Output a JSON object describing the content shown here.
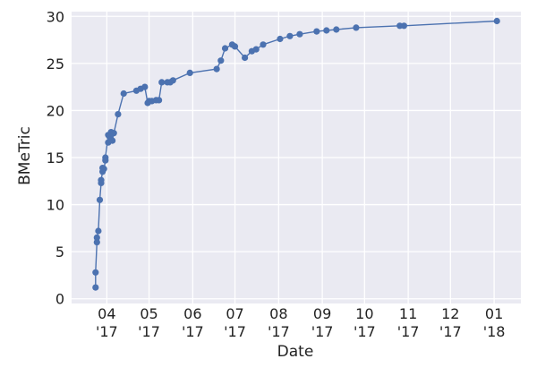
{
  "chart_data": {
    "type": "line",
    "xlabel": "Date",
    "ylabel": "BMeTric",
    "xlim": [
      "2017-03-07",
      "2018-01-20"
    ],
    "ylim": [
      -0.5,
      30.5
    ],
    "grid": true,
    "series_color": "#4c72b0",
    "plot_background": "#eaeaf2",
    "grid_color": "#ffffff",
    "x_ticks": [
      {
        "date": "2017-04-01",
        "month": "04",
        "year": "'17"
      },
      {
        "date": "2017-05-01",
        "month": "05",
        "year": "'17"
      },
      {
        "date": "2017-06-01",
        "month": "06",
        "year": "'17"
      },
      {
        "date": "2017-07-01",
        "month": "07",
        "year": "'17"
      },
      {
        "date": "2017-08-01",
        "month": "08",
        "year": "'17"
      },
      {
        "date": "2017-09-01",
        "month": "09",
        "year": "'17"
      },
      {
        "date": "2017-10-01",
        "month": "10",
        "year": "'17"
      },
      {
        "date": "2017-11-01",
        "month": "11",
        "year": "'17"
      },
      {
        "date": "2017-12-01",
        "month": "12",
        "year": "'17"
      },
      {
        "date": "2018-01-01",
        "month": "01",
        "year": "'18"
      }
    ],
    "y_ticks": [
      {
        "value": 0,
        "label": "0"
      },
      {
        "value": 5,
        "label": "5"
      },
      {
        "value": 10,
        "label": "10"
      },
      {
        "value": 15,
        "label": "15"
      },
      {
        "value": 20,
        "label": "20"
      },
      {
        "value": 25,
        "label": "25"
      },
      {
        "value": 30,
        "label": "30"
      }
    ],
    "series": [
      {
        "x": [
          "2017-03-24",
          "2017-03-24",
          "2017-03-25",
          "2017-03-25",
          "2017-03-26",
          "2017-03-27",
          "2017-03-28",
          "2017-03-28",
          "2017-03-29",
          "2017-03-29",
          "2017-03-30",
          "2017-03-31",
          "2017-03-31",
          "2017-04-02",
          "2017-04-02",
          "2017-04-03",
          "2017-04-04",
          "2017-04-05",
          "2017-04-06",
          "2017-04-09",
          "2017-04-13",
          "2017-04-22",
          "2017-04-25",
          "2017-04-28",
          "2017-04-30",
          "2017-05-01",
          "2017-05-03",
          "2017-05-06",
          "2017-05-08",
          "2017-05-10",
          "2017-05-14",
          "2017-05-16",
          "2017-05-18",
          "2017-05-30",
          "2017-06-18",
          "2017-06-21",
          "2017-06-24",
          "2017-06-29",
          "2017-07-01",
          "2017-07-08",
          "2017-07-13",
          "2017-07-16",
          "2017-07-21",
          "2017-08-02",
          "2017-08-09",
          "2017-08-16",
          "2017-08-28",
          "2017-09-04",
          "2017-09-11",
          "2017-09-25",
          "2017-10-26",
          "2017-10-29",
          "2018-01-03"
        ],
        "y": [
          1.2,
          2.8,
          6.0,
          6.5,
          7.2,
          10.5,
          12.3,
          12.6,
          13.5,
          13.9,
          13.8,
          14.7,
          15.0,
          17.4,
          16.6,
          17.2,
          17.7,
          16.8,
          17.6,
          19.6,
          21.8,
          22.1,
          22.3,
          22.5,
          20.8,
          21.0,
          21.0,
          21.1,
          21.1,
          23.0,
          23.0,
          23.0,
          23.2,
          24.0,
          24.4,
          25.3,
          26.6,
          27.0,
          26.8,
          25.6,
          26.3,
          26.5,
          27.0,
          27.6,
          27.9,
          28.1,
          28.4,
          28.5,
          28.6,
          28.8,
          29.0,
          29.0,
          29.5
        ]
      }
    ]
  }
}
